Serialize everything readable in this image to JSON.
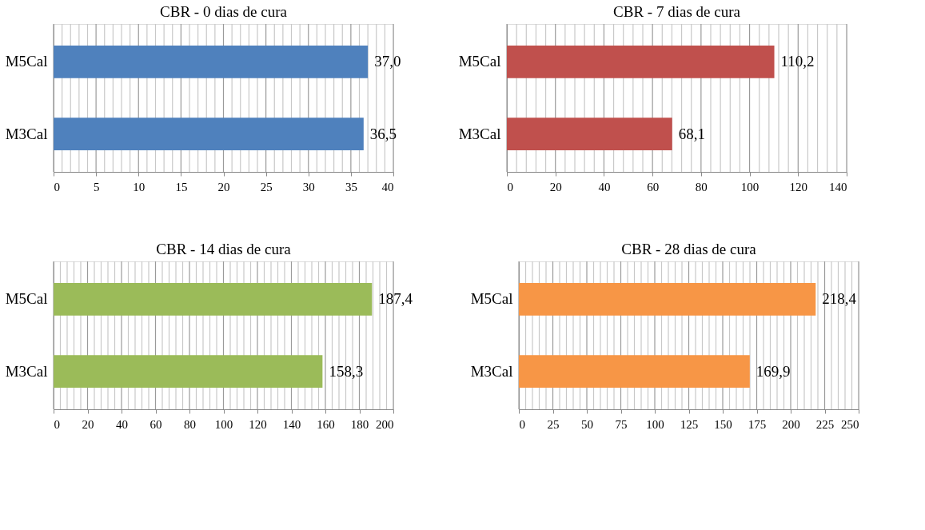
{
  "chart_data": [
    {
      "type": "bar",
      "orientation": "horizontal",
      "title": "CBR - 0 dias de cura",
      "categories": [
        "M5Cal",
        "M3Cal"
      ],
      "values": [
        37.0,
        36.5
      ],
      "value_labels": [
        "37,0",
        "36,5"
      ],
      "color": "#4f81bd",
      "xlim": [
        0,
        40
      ],
      "grid": "x",
      "xticks": [
        0,
        {
          "value": 1,
          "label": null
        },
        {
          "value": 2,
          "label": null
        },
        {
          "value": 3,
          "label": null
        },
        {
          "value": 4,
          "label": null
        },
        5,
        {
          "value": 6,
          "label": null
        },
        {
          "value": 7,
          "label": null
        },
        {
          "value": 8,
          "label": null
        },
        {
          "value": 9,
          "label": null
        },
        10,
        {
          "value": 11,
          "label": null
        },
        {
          "value": 12,
          "label": null
        },
        {
          "value": 13,
          "label": null
        },
        {
          "value": 14,
          "label": null
        },
        15,
        {
          "value": 16,
          "label": null
        },
        {
          "value": 17,
          "label": null
        },
        {
          "value": 18,
          "label": null
        },
        {
          "value": 19,
          "label": null
        },
        20,
        {
          "value": 21,
          "label": null
        },
        {
          "value": 22,
          "label": null
        },
        {
          "value": 23,
          "label": null
        },
        {
          "value": 24,
          "label": null
        },
        25,
        {
          "value": 26,
          "label": null
        },
        {
          "value": 27,
          "label": null
        },
        {
          "value": 28,
          "label": null
        },
        {
          "value": 29,
          "label": null
        },
        30,
        {
          "value": 31,
          "label": null
        },
        {
          "value": 32,
          "label": null
        },
        {
          "value": 33,
          "label": null
        },
        {
          "value": 34,
          "label": null
        },
        35,
        {
          "value": 36,
          "label": null
        },
        {
          "value": 37,
          "label": null
        },
        {
          "value": 38,
          "label": null
        },
        {
          "value": 39,
          "label": null
        },
        40
      ]
    },
    {
      "type": "bar",
      "orientation": "horizontal",
      "title": "CBR - 7 dias de cura",
      "categories": [
        "M5Cal",
        "M3Cal"
      ],
      "values": [
        110.2,
        68.1
      ],
      "value_labels": [
        "110,2",
        "68,1"
      ],
      "color": "#c0504d",
      "xlim": [
        0,
        140
      ],
      "grid": "x",
      "xticks": [
        0,
        {
          "value": 4,
          "label": null
        },
        {
          "value": 8,
          "label": null
        },
        {
          "value": 12,
          "label": null
        },
        {
          "value": 16,
          "label": null
        },
        20,
        {
          "value": 24,
          "label": null
        },
        {
          "value": 28,
          "label": null
        },
        {
          "value": 32,
          "label": null
        },
        {
          "value": 36,
          "label": null
        },
        40,
        {
          "value": 44,
          "label": null
        },
        {
          "value": 48,
          "label": null
        },
        {
          "value": 52,
          "label": null
        },
        {
          "value": 56,
          "label": null
        },
        60,
        {
          "value": 64,
          "label": null
        },
        {
          "value": 68,
          "label": null
        },
        {
          "value": 72,
          "label": null
        },
        {
          "value": 76,
          "label": null
        },
        80,
        {
          "value": 84,
          "label": null
        },
        {
          "value": 88,
          "label": null
        },
        {
          "value": 92,
          "label": null
        },
        {
          "value": 96,
          "label": null
        },
        100,
        {
          "value": 104,
          "label": null
        },
        {
          "value": 108,
          "label": null
        },
        {
          "value": 112,
          "label": null
        },
        {
          "value": 116,
          "label": null
        },
        120,
        {
          "value": 124,
          "label": null
        },
        {
          "value": 128,
          "label": null
        },
        {
          "value": 132,
          "label": null
        },
        {
          "value": 136,
          "label": null
        },
        140
      ]
    },
    {
      "type": "bar",
      "orientation": "horizontal",
      "title": "CBR - 14 dias de cura",
      "categories": [
        "M5Cal",
        "M3Cal"
      ],
      "values": [
        187.4,
        158.3
      ],
      "value_labels": [
        "187,4",
        "158,3"
      ],
      "color": "#9bbb59",
      "xlim": [
        0,
        200
      ],
      "grid": "x",
      "xticks": [
        0,
        {
          "value": 4,
          "label": null
        },
        {
          "value": 8,
          "label": null
        },
        {
          "value": 12,
          "label": null
        },
        {
          "value": 16,
          "label": null
        },
        20,
        {
          "value": 24,
          "label": null
        },
        {
          "value": 28,
          "label": null
        },
        {
          "value": 32,
          "label": null
        },
        {
          "value": 36,
          "label": null
        },
        40,
        {
          "value": 44,
          "label": null
        },
        {
          "value": 48,
          "label": null
        },
        {
          "value": 52,
          "label": null
        },
        {
          "value": 56,
          "label": null
        },
        60,
        {
          "value": 64,
          "label": null
        },
        {
          "value": 68,
          "label": null
        },
        {
          "value": 72,
          "label": null
        },
        {
          "value": 76,
          "label": null
        },
        80,
        {
          "value": 84,
          "label": null
        },
        {
          "value": 88,
          "label": null
        },
        {
          "value": 92,
          "label": null
        },
        {
          "value": 96,
          "label": null
        },
        100,
        {
          "value": 104,
          "label": null
        },
        {
          "value": 108,
          "label": null
        },
        {
          "value": 112,
          "label": null
        },
        {
          "value": 116,
          "label": null
        },
        120,
        {
          "value": 124,
          "label": null
        },
        {
          "value": 128,
          "label": null
        },
        {
          "value": 132,
          "label": null
        },
        {
          "value": 136,
          "label": null
        },
        140,
        {
          "value": 144,
          "label": null
        },
        {
          "value": 148,
          "label": null
        },
        {
          "value": 152,
          "label": null
        },
        {
          "value": 156,
          "label": null
        },
        160,
        {
          "value": 164,
          "label": null
        },
        {
          "value": 168,
          "label": null
        },
        {
          "value": 172,
          "label": null
        },
        {
          "value": 176,
          "label": null
        },
        180,
        {
          "value": 184,
          "label": null
        },
        {
          "value": 188,
          "label": null
        },
        {
          "value": 192,
          "label": null
        },
        {
          "value": 196,
          "label": null
        },
        200
      ]
    },
    {
      "type": "bar",
      "orientation": "horizontal",
      "title": "CBR - 28 dias de cura",
      "categories": [
        "M5Cal",
        "M3Cal"
      ],
      "values": [
        218.4,
        169.9
      ],
      "value_labels": [
        "218,4",
        "169,9"
      ],
      "color": "#f79646",
      "xlim": [
        0,
        250
      ],
      "grid": "x",
      "xticks": [
        0,
        {
          "value": 5,
          "label": null
        },
        {
          "value": 10,
          "label": null
        },
        {
          "value": 15,
          "label": null
        },
        {
          "value": 20,
          "label": null
        },
        25,
        {
          "value": 30,
          "label": null
        },
        {
          "value": 35,
          "label": null
        },
        {
          "value": 40,
          "label": null
        },
        {
          "value": 45,
          "label": null
        },
        50,
        {
          "value": 55,
          "label": null
        },
        {
          "value": 60,
          "label": null
        },
        {
          "value": 65,
          "label": null
        },
        {
          "value": 70,
          "label": null
        },
        75,
        {
          "value": 80,
          "label": null
        },
        {
          "value": 85,
          "label": null
        },
        {
          "value": 90,
          "label": null
        },
        {
          "value": 95,
          "label": null
        },
        100,
        {
          "value": 105,
          "label": null
        },
        {
          "value": 110,
          "label": null
        },
        {
          "value": 115,
          "label": null
        },
        {
          "value": 120,
          "label": null
        },
        125,
        {
          "value": 130,
          "label": null
        },
        {
          "value": 135,
          "label": null
        },
        {
          "value": 140,
          "label": null
        },
        {
          "value": 145,
          "label": null
        },
        150,
        {
          "value": 155,
          "label": null
        },
        {
          "value": 160,
          "label": null
        },
        {
          "value": 165,
          "label": null
        },
        {
          "value": 170,
          "label": null
        },
        175,
        {
          "value": 180,
          "label": null
        },
        {
          "value": 185,
          "label": null
        },
        {
          "value": 190,
          "label": null
        },
        {
          "value": 195,
          "label": null
        },
        200,
        {
          "value": 205,
          "label": null
        },
        {
          "value": 210,
          "label": null
        },
        {
          "value": 215,
          "label": null
        },
        {
          "value": 220,
          "label": null
        },
        225,
        {
          "value": 230,
          "label": null
        },
        {
          "value": 235,
          "label": null
        },
        {
          "value": 240,
          "label": null
        },
        {
          "value": 245,
          "label": null
        },
        250
      ]
    }
  ]
}
